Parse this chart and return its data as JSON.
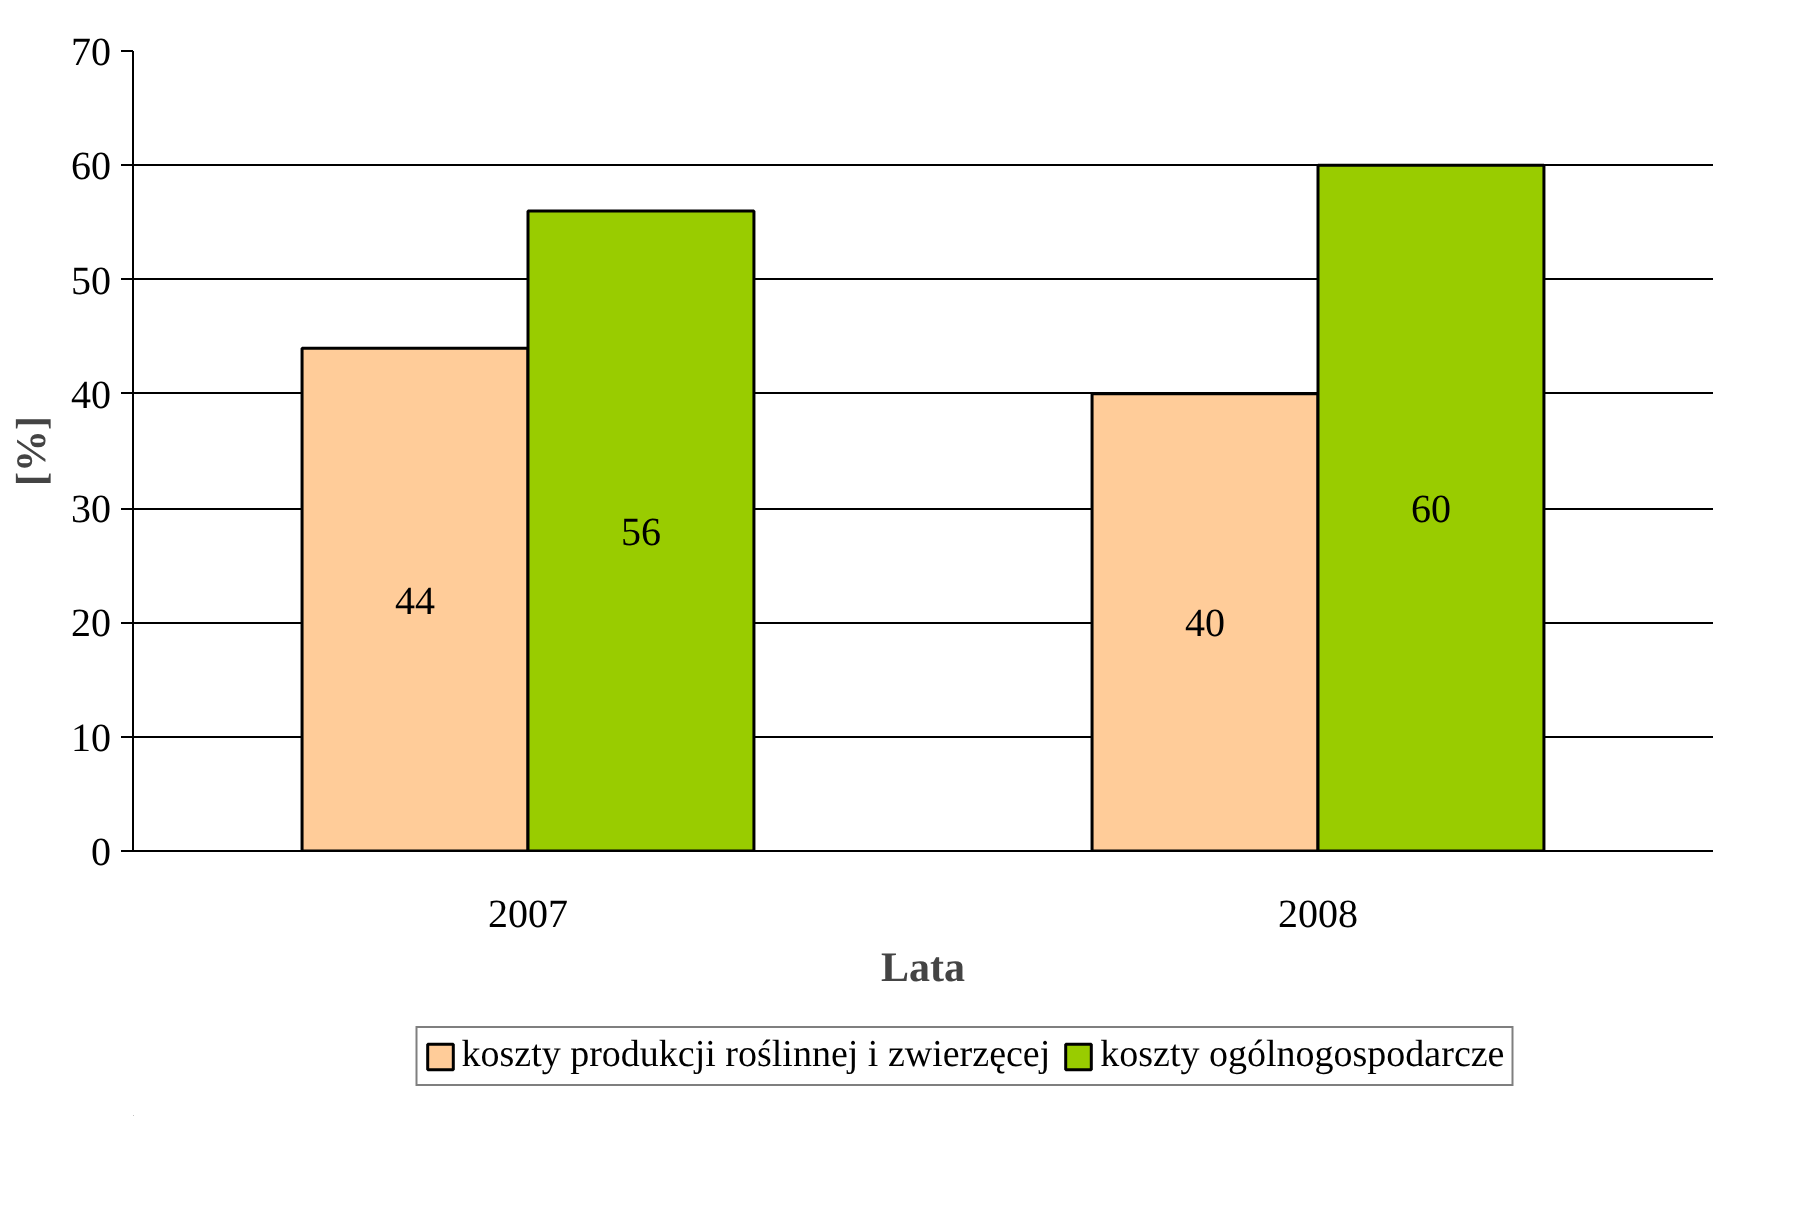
{
  "chart_data": {
    "type": "bar",
    "xlabel": "Lata",
    "ylabel": "[%]",
    "categories": [
      "2007",
      "2008"
    ],
    "series": [
      {
        "name": "koszty produkcji roślinnej i zwierzęcej",
        "color": "#ffcc99",
        "values": [
          44,
          40
        ]
      },
      {
        "name": "koszty ogólnogospodarcze",
        "color": "#99cc00",
        "values": [
          56,
          60
        ]
      }
    ],
    "ylim": [
      0,
      70
    ],
    "yticks": [
      0,
      10,
      20,
      30,
      40,
      50,
      60,
      70
    ],
    "grid": "y",
    "legend": "bottom",
    "data_labels": true
  }
}
